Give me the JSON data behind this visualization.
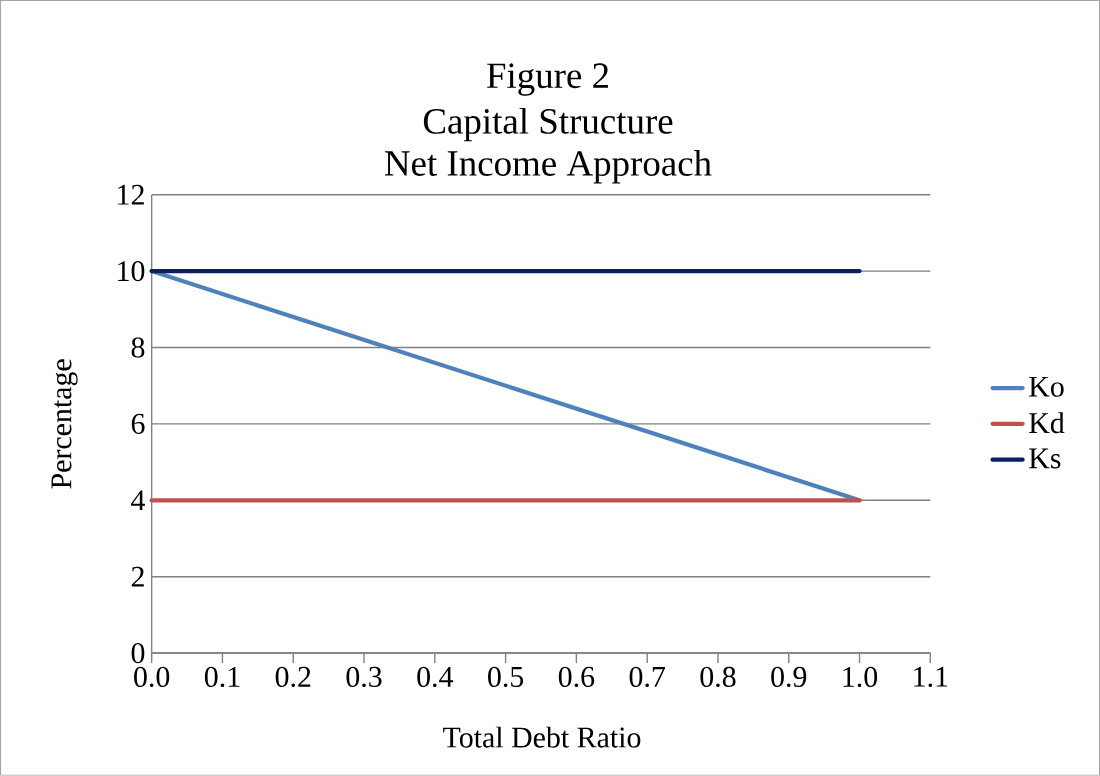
{
  "chart_data": {
    "type": "line",
    "title": "Figure 2",
    "subtitle": "Capital Structure",
    "annotations": [
      "Net Income Approach"
    ],
    "xlabel": "Total Debt Ratio",
    "ylabel": "Percentage",
    "x": [
      0,
      1
    ],
    "series": [
      {
        "name": "Ko",
        "color": "#4f81bd",
        "values": [
          10,
          4
        ]
      },
      {
        "name": "Kd",
        "color": "#c0504d",
        "values": [
          4,
          4
        ]
      },
      {
        "name": "Ks",
        "color": "#0d1f5c",
        "values": [
          10,
          10
        ]
      }
    ],
    "xlim": [
      0,
      1.1
    ],
    "xticks": [
      {
        "value": 0,
        "label": "0.0"
      },
      {
        "value": 0.1,
        "label": "0.1"
      },
      {
        "value": 0.2,
        "label": "0.2"
      },
      {
        "value": 0.3,
        "label": "0.3"
      },
      {
        "value": 0.4,
        "label": "0.4"
      },
      {
        "value": 0.5,
        "label": "0.5"
      },
      {
        "value": 0.6,
        "label": "0.6"
      },
      {
        "value": 0.7,
        "label": "0.7"
      },
      {
        "value": 0.8,
        "label": "0.8"
      },
      {
        "value": 0.9,
        "label": "0.9"
      },
      {
        "value": 1,
        "label": "1.0"
      },
      {
        "value": 1.1,
        "label": "1.1"
      }
    ],
    "ylim": [
      0,
      12
    ],
    "yticks": [
      0,
      2,
      4,
      6,
      8,
      10,
      12
    ],
    "grid": "y",
    "legend": "right",
    "marker": "none",
    "line_style": "solid"
  }
}
